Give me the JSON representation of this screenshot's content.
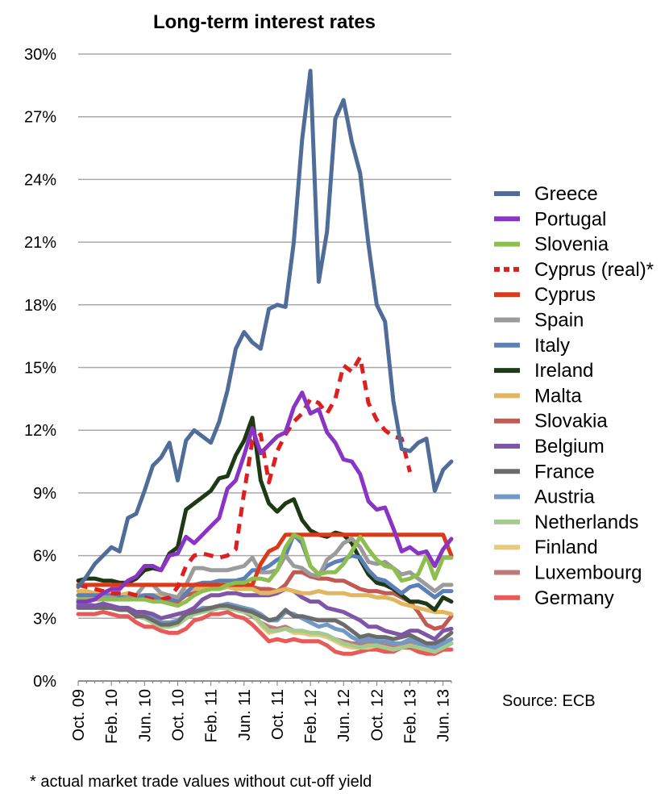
{
  "chart_data": {
    "type": "line",
    "title": "Long-term interest rates",
    "xlabel": "",
    "ylabel": "",
    "ylim": [
      0,
      30
    ],
    "grid": true,
    "legend_position": "right",
    "y_ticks": [
      "0%",
      "3%",
      "6%",
      "9%",
      "12%",
      "15%",
      "18%",
      "21%",
      "24%",
      "27%",
      "30%"
    ],
    "x": [
      "Oct. 09",
      "Nov. 09",
      "Dec. 09",
      "Jan. 10",
      "Feb. 10",
      "Mar. 10",
      "Apr. 10",
      "May 10",
      "Jun. 10",
      "Jul. 10",
      "Aug. 10",
      "Sep. 10",
      "Oct. 10",
      "Nov. 10",
      "Dec. 10",
      "Jan. 11",
      "Feb. 11",
      "Mar. 11",
      "Apr. 11",
      "May 11",
      "Jun. 11",
      "Jul. 11",
      "Aug. 11",
      "Sep. 11",
      "Oct. 11",
      "Nov. 11",
      "Dec. 11",
      "Jan. 12",
      "Feb. 12",
      "Mar. 12",
      "Apr. 12",
      "May 12",
      "Jun. 12",
      "Jul. 12",
      "Aug. 12",
      "Sep. 12",
      "Oct. 12",
      "Nov. 12",
      "Dec. 12",
      "Jan. 13",
      "Feb. 13",
      "Mar. 13",
      "Apr. 13",
      "May 13",
      "Jun. 13",
      "Jul. 13"
    ],
    "x_tick_labels": [
      {
        "index": 0,
        "label": "Oct. 09"
      },
      {
        "index": 4,
        "label": "Feb. 10"
      },
      {
        "index": 8,
        "label": "Jun. 10"
      },
      {
        "index": 12,
        "label": "Oct. 10"
      },
      {
        "index": 16,
        "label": "Feb. 11"
      },
      {
        "index": 20,
        "label": "Jun. 11"
      },
      {
        "index": 24,
        "label": "Oct. 11"
      },
      {
        "index": 28,
        "label": "Feb. 12"
      },
      {
        "index": 32,
        "label": "Jun. 12"
      },
      {
        "index": 36,
        "label": "Oct. 12"
      },
      {
        "index": 40,
        "label": "Feb. 13"
      },
      {
        "index": 44,
        "label": "Jun. 13"
      }
    ],
    "series": [
      {
        "name": "Greece",
        "color": "#4F6D98",
        "dashed": false,
        "values": [
          4.5,
          5.0,
          5.6,
          6.0,
          6.4,
          6.2,
          7.8,
          8.0,
          9.1,
          10.3,
          10.7,
          11.4,
          9.6,
          11.5,
          12.0,
          11.7,
          11.4,
          12.4,
          13.9,
          15.9,
          16.7,
          16.2,
          15.9,
          17.8,
          18.0,
          17.9,
          21.0,
          25.9,
          29.2,
          19.1,
          21.5,
          26.9,
          27.8,
          25.8,
          24.3,
          20.9,
          18.0,
          17.2,
          13.4,
          11.1,
          11.0,
          11.4,
          11.6,
          9.1,
          10.1,
          10.5
        ]
      },
      {
        "name": "Portugal",
        "color": "#8A34C6",
        "dashed": false,
        "values": [
          3.8,
          3.8,
          3.9,
          4.2,
          4.4,
          4.4,
          4.8,
          5.0,
          5.5,
          5.5,
          5.3,
          6.0,
          6.1,
          6.9,
          6.6,
          7.0,
          7.4,
          7.8,
          9.2,
          9.6,
          10.8,
          12.1,
          10.9,
          11.3,
          11.7,
          11.9,
          13.1,
          13.8,
          12.8,
          13.0,
          11.9,
          11.4,
          10.6,
          10.5,
          9.9,
          8.6,
          8.2,
          8.3,
          7.3,
          6.2,
          6.4,
          6.1,
          6.2,
          5.5,
          6.3,
          6.8
        ]
      },
      {
        "name": "Slovenia",
        "color": "#8EBE4E",
        "dashed": false,
        "values": [
          3.9,
          3.9,
          3.9,
          3.9,
          3.9,
          3.9,
          3.9,
          3.9,
          3.9,
          3.8,
          3.8,
          3.7,
          3.6,
          3.8,
          4.1,
          4.3,
          4.4,
          4.4,
          4.6,
          4.7,
          4.7,
          4.9,
          4.9,
          4.8,
          5.3,
          6.4,
          7.0,
          6.8,
          5.5,
          5.1,
          5.2,
          5.2,
          5.6,
          6.2,
          6.9,
          6.3,
          5.8,
          5.5,
          5.4,
          4.8,
          4.9,
          5.1,
          6.0,
          4.9,
          5.9,
          5.9
        ]
      },
      {
        "name": "Cyprus (real)*",
        "color": "#DD1F1F",
        "dashed": true,
        "values": [
          4.6,
          4.5,
          4.4,
          4.3,
          4.2,
          4.2,
          4.2,
          4.1,
          4.0,
          3.9,
          3.9,
          4.0,
          4.5,
          5.5,
          6.0,
          6.1,
          6.0,
          5.9,
          6.0,
          6.3,
          9.0,
          11.5,
          11.8,
          9.5,
          11.0,
          11.8,
          12.4,
          12.8,
          13.5,
          13.3,
          12.8,
          13.5,
          15.1,
          14.8,
          15.5,
          13.3,
          12.5,
          12.0,
          11.7,
          11.6,
          10.0,
          null,
          null,
          null,
          null,
          null
        ]
      },
      {
        "name": "Cyprus",
        "color": "#D93A1A",
        "dashed": false,
        "values": [
          4.6,
          4.6,
          4.6,
          4.6,
          4.6,
          4.6,
          4.6,
          4.6,
          4.6,
          4.6,
          4.6,
          4.6,
          4.6,
          4.6,
          4.6,
          4.6,
          4.6,
          4.6,
          4.6,
          4.6,
          4.6,
          4.6,
          5.6,
          6.2,
          6.4,
          7.0,
          7.0,
          7.0,
          7.0,
          7.0,
          7.0,
          7.0,
          7.0,
          7.0,
          7.0,
          7.0,
          7.0,
          7.0,
          7.0,
          7.0,
          7.0,
          7.0,
          7.0,
          7.0,
          7.0,
          6.0
        ]
      },
      {
        "name": "Spain",
        "color": "#9B9B9B",
        "dashed": false,
        "values": [
          3.8,
          3.8,
          3.9,
          4.0,
          4.0,
          3.9,
          4.0,
          4.1,
          4.6,
          4.6,
          4.2,
          4.1,
          4.0,
          4.6,
          5.4,
          5.4,
          5.3,
          5.3,
          5.3,
          5.4,
          5.5,
          5.9,
          5.2,
          5.2,
          5.3,
          6.0,
          5.5,
          5.4,
          5.1,
          5.0,
          5.8,
          6.1,
          6.6,
          6.8,
          6.4,
          5.7,
          5.6,
          5.7,
          5.4,
          5.1,
          5.2,
          4.9,
          4.6,
          4.3,
          4.6,
          4.6
        ]
      },
      {
        "name": "Italy",
        "color": "#5B7FB8",
        "dashed": false,
        "values": [
          4.1,
          4.1,
          4.1,
          4.1,
          4.1,
          4.0,
          4.0,
          4.0,
          4.1,
          4.1,
          3.9,
          3.9,
          3.9,
          4.2,
          4.6,
          4.7,
          4.7,
          4.8,
          4.8,
          4.8,
          4.9,
          5.3,
          5.3,
          5.5,
          5.8,
          6.0,
          7.0,
          6.6,
          5.5,
          5.1,
          5.5,
          5.7,
          5.8,
          6.0,
          5.9,
          5.3,
          4.9,
          4.8,
          4.5,
          4.2,
          4.5,
          4.6,
          4.3,
          4.0,
          4.3,
          4.3
        ]
      },
      {
        "name": "Ireland",
        "color": "#1E3A14",
        "dashed": false,
        "values": [
          4.8,
          4.9,
          4.9,
          4.8,
          4.8,
          4.7,
          4.7,
          4.9,
          5.3,
          5.4,
          5.3,
          6.1,
          6.4,
          8.2,
          8.5,
          8.8,
          9.1,
          9.7,
          9.8,
          10.8,
          11.5,
          12.6,
          9.6,
          8.5,
          8.1,
          8.5,
          8.7,
          7.7,
          7.2,
          7.0,
          6.9,
          7.1,
          7.0,
          6.6,
          5.8,
          5.1,
          4.7,
          4.6,
          4.4,
          4.1,
          3.8,
          3.8,
          3.7,
          3.4,
          4.0,
          3.8
        ]
      },
      {
        "name": "Malta",
        "color": "#E3B55E",
        "dashed": false,
        "values": [
          4.3,
          4.3,
          4.2,
          4.2,
          4.2,
          4.1,
          4.2,
          4.1,
          4.1,
          4.1,
          4.1,
          4.0,
          4.0,
          4.3,
          4.4,
          4.4,
          4.4,
          4.4,
          4.5,
          4.4,
          4.4,
          4.4,
          4.2,
          4.2,
          4.3,
          4.4,
          4.3,
          4.2,
          4.2,
          4.3,
          4.2,
          4.2,
          4.2,
          4.1,
          4.1,
          4.1,
          4.0,
          4.0,
          3.9,
          3.7,
          3.6,
          3.5,
          3.4,
          3.3,
          3.3,
          3.2
        ]
      },
      {
        "name": "Slovakia",
        "color": "#C25A52",
        "dashed": false,
        "values": [
          4.1,
          4.1,
          4.1,
          4.1,
          4.0,
          4.0,
          4.0,
          3.9,
          3.9,
          3.9,
          3.8,
          3.8,
          3.8,
          4.1,
          4.2,
          4.3,
          4.4,
          4.4,
          4.5,
          4.5,
          4.4,
          4.5,
          4.4,
          4.4,
          4.3,
          4.6,
          5.2,
          5.2,
          5.0,
          4.9,
          4.9,
          4.8,
          4.8,
          4.6,
          4.4,
          4.3,
          4.3,
          4.2,
          4.2,
          4.0,
          3.8,
          3.3,
          2.7,
          2.5,
          2.6,
          3.1
        ]
      },
      {
        "name": "Belgium",
        "color": "#7F55A8",
        "dashed": false,
        "values": [
          3.6,
          3.6,
          3.6,
          3.7,
          3.6,
          3.5,
          3.5,
          3.3,
          3.3,
          3.2,
          3.0,
          3.1,
          3.2,
          3.3,
          3.5,
          3.9,
          4.1,
          4.1,
          4.2,
          4.2,
          4.1,
          4.1,
          4.1,
          4.1,
          4.2,
          4.4,
          4.3,
          4.0,
          3.8,
          3.8,
          3.5,
          3.4,
          3.3,
          3.1,
          2.9,
          2.6,
          2.6,
          2.4,
          2.3,
          2.2,
          2.4,
          2.4,
          2.2,
          2.0,
          2.4,
          2.5
        ]
      },
      {
        "name": "France",
        "color": "#6B6B6B",
        "dashed": false,
        "values": [
          3.5,
          3.5,
          3.5,
          3.5,
          3.5,
          3.4,
          3.4,
          3.1,
          3.1,
          2.9,
          2.7,
          2.7,
          2.8,
          3.2,
          3.3,
          3.4,
          3.5,
          3.6,
          3.6,
          3.5,
          3.4,
          3.3,
          3.1,
          2.9,
          3.0,
          3.4,
          3.1,
          3.1,
          3.0,
          2.9,
          2.9,
          2.9,
          2.7,
          2.4,
          2.1,
          2.2,
          2.1,
          2.1,
          2.0,
          2.1,
          2.2,
          2.0,
          1.8,
          1.8,
          2.0,
          2.3
        ]
      },
      {
        "name": "Austria",
        "color": "#7099C8",
        "dashed": false,
        "values": [
          3.7,
          3.7,
          3.6,
          3.7,
          3.6,
          3.5,
          3.5,
          3.3,
          3.2,
          3.0,
          2.8,
          2.8,
          2.9,
          3.2,
          3.3,
          3.5,
          3.5,
          3.6,
          3.7,
          3.6,
          3.5,
          3.4,
          3.2,
          2.9,
          2.9,
          3.3,
          3.2,
          3.0,
          2.8,
          2.6,
          2.7,
          2.5,
          2.4,
          2.1,
          1.9,
          2.0,
          1.9,
          1.9,
          1.8,
          1.8,
          2.0,
          1.8,
          1.7,
          1.6,
          1.8,
          2.0
        ]
      },
      {
        "name": "Netherlands",
        "color": "#A3CB8E",
        "dashed": false,
        "values": [
          3.6,
          3.6,
          3.6,
          3.6,
          3.5,
          3.4,
          3.4,
          3.1,
          3.0,
          2.8,
          2.6,
          2.6,
          2.7,
          3.0,
          3.2,
          3.3,
          3.4,
          3.5,
          3.5,
          3.4,
          3.3,
          3.2,
          2.8,
          2.4,
          2.4,
          2.5,
          2.4,
          2.4,
          2.3,
          2.3,
          2.2,
          2.0,
          1.8,
          1.7,
          1.6,
          1.7,
          1.7,
          1.6,
          1.5,
          1.6,
          1.7,
          1.6,
          1.5,
          1.4,
          1.6,
          1.8
        ]
      },
      {
        "name": "Finland",
        "color": "#E8C87C",
        "dashed": false,
        "values": [
          3.6,
          3.6,
          3.6,
          3.6,
          3.5,
          3.4,
          3.4,
          3.1,
          3.0,
          2.8,
          2.6,
          2.6,
          2.7,
          3.0,
          3.2,
          3.3,
          3.4,
          3.5,
          3.5,
          3.4,
          3.3,
          3.2,
          2.7,
          2.3,
          2.4,
          2.5,
          2.3,
          2.3,
          2.2,
          2.2,
          2.1,
          1.9,
          1.7,
          1.6,
          1.6,
          1.6,
          1.7,
          1.6,
          1.5,
          1.6,
          1.7,
          1.6,
          1.5,
          1.4,
          1.6,
          1.8
        ]
      },
      {
        "name": "Luxembourg",
        "color": "#BC7A78",
        "dashed": false,
        "values": [
          3.7,
          3.7,
          3.6,
          3.6,
          3.5,
          3.4,
          3.4,
          3.2,
          3.1,
          2.9,
          2.8,
          2.8,
          2.8,
          3.1,
          3.2,
          3.4,
          3.4,
          3.5,
          3.5,
          3.4,
          3.3,
          3.1,
          2.8,
          2.6,
          2.5,
          2.6,
          2.4,
          2.3,
          2.2,
          2.2,
          2.1,
          2.0,
          1.9,
          1.8,
          1.8,
          1.8,
          1.8,
          1.7,
          1.7,
          1.8,
          1.8,
          1.7,
          1.6,
          1.5,
          1.6,
          1.8
        ]
      },
      {
        "name": "Germany",
        "color": "#E65A5A",
        "dashed": false,
        "values": [
          3.2,
          3.2,
          3.2,
          3.3,
          3.2,
          3.1,
          3.1,
          2.8,
          2.6,
          2.6,
          2.4,
          2.3,
          2.3,
          2.5,
          2.9,
          3.0,
          3.2,
          3.2,
          3.3,
          3.1,
          3.0,
          2.7,
          2.3,
          1.9,
          2.0,
          1.9,
          2.0,
          1.9,
          1.9,
          1.9,
          1.7,
          1.4,
          1.3,
          1.3,
          1.4,
          1.5,
          1.5,
          1.4,
          1.4,
          1.6,
          1.6,
          1.4,
          1.3,
          1.3,
          1.5,
          1.5
        ]
      }
    ],
    "source_label": "Source: ECB",
    "footnote": "* actual market trade values without cut-off yield"
  }
}
